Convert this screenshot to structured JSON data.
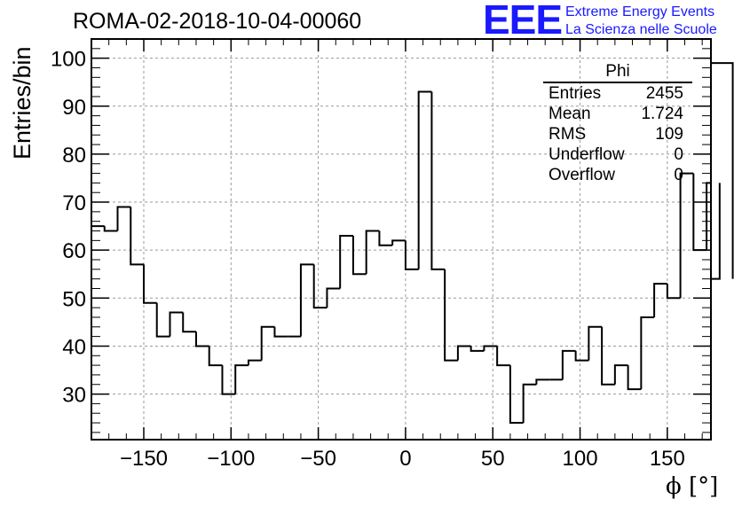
{
  "title": "ROMA-02-2018-10-04-00060",
  "logo": {
    "mark": "EEE",
    "line1": "Extreme Energy Events",
    "line2": "La Scienza nelle Scuole",
    "color": "#1a1aff"
  },
  "stats_box": {
    "title": "Phi",
    "rows": [
      {
        "label": "Entries",
        "value": "2455"
      },
      {
        "label": "Mean",
        "value": "1.724"
      },
      {
        "label": "RMS",
        "value": "109"
      },
      {
        "label": "Underflow",
        "value": "0"
      },
      {
        "label": "Overflow",
        "value": "0"
      }
    ]
  },
  "chart_data": {
    "type": "histogram",
    "title": "ROMA-02-2018-10-04-00060",
    "xlabel": "ϕ [°]",
    "ylabel": "Entries/bin",
    "xlim": [
      -180,
      175
    ],
    "ylim": [
      20.5,
      104
    ],
    "x_ticks": [
      -150,
      -100,
      -50,
      0,
      50,
      100,
      150
    ],
    "x_tick_labels": [
      "−150",
      "−100",
      "−50",
      "0",
      "50",
      "100",
      "150"
    ],
    "y_ticks": [
      30,
      40,
      50,
      60,
      70,
      80,
      90,
      100
    ],
    "y_tick_labels": [
      "30",
      "40",
      "50",
      "60",
      "70",
      "80",
      "90",
      "100"
    ],
    "bin_edges_start": -180,
    "bin_width": 7.5,
    "values": [
      65,
      64,
      69,
      57,
      49,
      42,
      47,
      43,
      40,
      36,
      30,
      36,
      37,
      44,
      42,
      42,
      57,
      48,
      52,
      63,
      55,
      64,
      61,
      62,
      56,
      93,
      56,
      37,
      40,
      39,
      40,
      36,
      24,
      32,
      33,
      33,
      39,
      37,
      44,
      32,
      36,
      31,
      46,
      53,
      50,
      76,
      60,
      74,
      54,
      99
    ],
    "grid": true,
    "line_color": "#000000"
  }
}
